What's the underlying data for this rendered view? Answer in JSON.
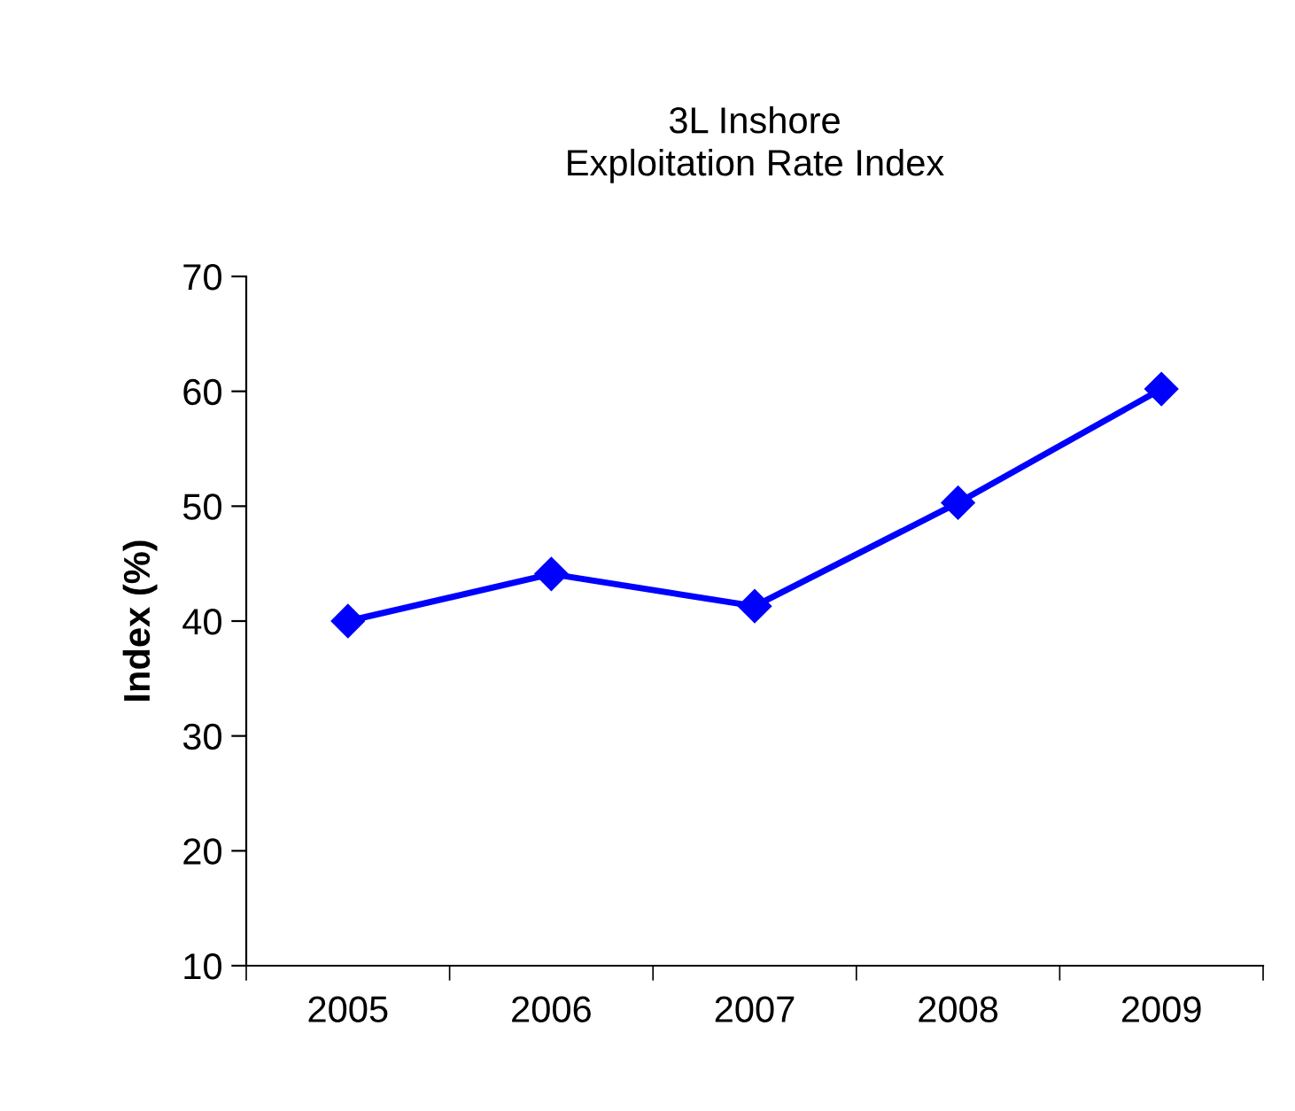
{
  "chart_data": {
    "type": "line",
    "title": "3L Inshore\nExploitation Rate Index",
    "ylabel": "Index (%)",
    "categories": [
      "2005",
      "2006",
      "2007",
      "2008",
      "2009"
    ],
    "series": [
      {
        "color": "#0000ff",
        "values": [
          40,
          44.1,
          41.3,
          50.3,
          60.2
        ]
      }
    ],
    "ylim": [
      10,
      70
    ],
    "yticks": [
      10,
      20,
      30,
      40,
      50,
      60,
      70
    ],
    "grid": false,
    "legend": false,
    "marker": "diamond",
    "line_style": "solid"
  }
}
